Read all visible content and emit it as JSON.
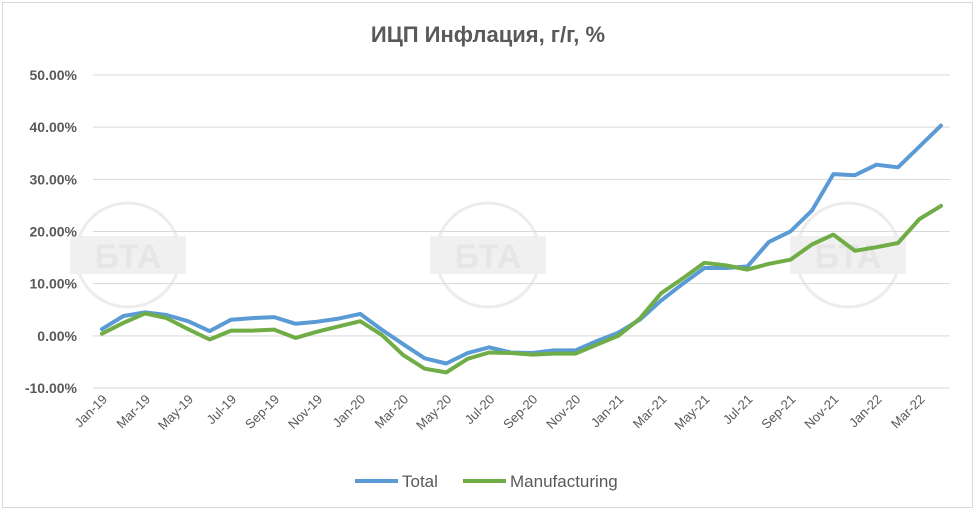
{
  "watermark": {
    "text": "БТА"
  },
  "chart_data": {
    "type": "line",
    "title": "ИЦП Инфлация, г/г, %",
    "xlabel": "",
    "ylabel": "",
    "ylim": [
      -10,
      50
    ],
    "yticks": [
      -10,
      0,
      10,
      20,
      30,
      40,
      50
    ],
    "ytick_labels": [
      "-10.00%",
      "0.00%",
      "10.00%",
      "20.00%",
      "30.00%",
      "40.00%",
      "50.00%"
    ],
    "grid": true,
    "legend_position": "bottom",
    "categories": [
      "Jan-19",
      "Feb-19",
      "Mar-19",
      "Apr-19",
      "May-19",
      "Jun-19",
      "Jul-19",
      "Aug-19",
      "Sep-19",
      "Oct-19",
      "Nov-19",
      "Dec-19",
      "Jan-20",
      "Feb-20",
      "Mar-20",
      "Apr-20",
      "May-20",
      "Jun-20",
      "Jul-20",
      "Aug-20",
      "Sep-20",
      "Oct-20",
      "Nov-20",
      "Dec-20",
      "Jan-21",
      "Feb-21",
      "Mar-21",
      "Apr-21",
      "May-21",
      "Jun-21",
      "Jul-21",
      "Aug-21",
      "Sep-21",
      "Oct-21",
      "Nov-21",
      "Dec-21",
      "Jan-22",
      "Feb-22",
      "Mar-22",
      "Apr-22"
    ],
    "tick_labels": [
      "Jan-19",
      "Mar-19",
      "May-19",
      "Jul-19",
      "Sep-19",
      "Nov-19",
      "Jan-20",
      "Mar-20",
      "May-20",
      "Jul-20",
      "Sep-20",
      "Nov-20",
      "Jan-21",
      "Mar-21",
      "May-21",
      "Jul-21",
      "Sep-21",
      "Nov-21",
      "Jan-22",
      "Mar-22"
    ],
    "series": [
      {
        "name": "Total",
        "color": "#5b9bd5",
        "values": [
          1.3,
          3.8,
          4.5,
          4.0,
          2.8,
          0.9,
          3.1,
          3.4,
          3.6,
          2.3,
          2.7,
          3.3,
          4.2,
          1.2,
          -1.6,
          -4.3,
          -5.3,
          -3.3,
          -2.2,
          -3.2,
          -3.3,
          -2.8,
          -2.8,
          -1.0,
          0.6,
          3.1,
          6.8,
          10.0,
          13.0,
          13.0,
          13.3,
          18.0,
          20.0,
          24.0,
          31.0,
          30.8,
          32.8,
          32.3,
          36.3,
          40.3
        ]
      },
      {
        "name": "Manufacturing",
        "color": "#70ad47",
        "values": [
          0.4,
          2.5,
          4.3,
          3.4,
          1.3,
          -0.7,
          1.0,
          1.0,
          1.2,
          -0.4,
          0.8,
          1.8,
          2.8,
          0.2,
          -3.7,
          -6.3,
          -7.0,
          -4.4,
          -3.2,
          -3.3,
          -3.6,
          -3.4,
          -3.4,
          -1.7,
          0.0,
          3.3,
          8.2,
          11.0,
          14.0,
          13.5,
          12.7,
          13.8,
          14.6,
          17.5,
          19.4,
          16.3,
          17.0,
          17.8,
          22.4,
          24.9
        ]
      }
    ]
  }
}
